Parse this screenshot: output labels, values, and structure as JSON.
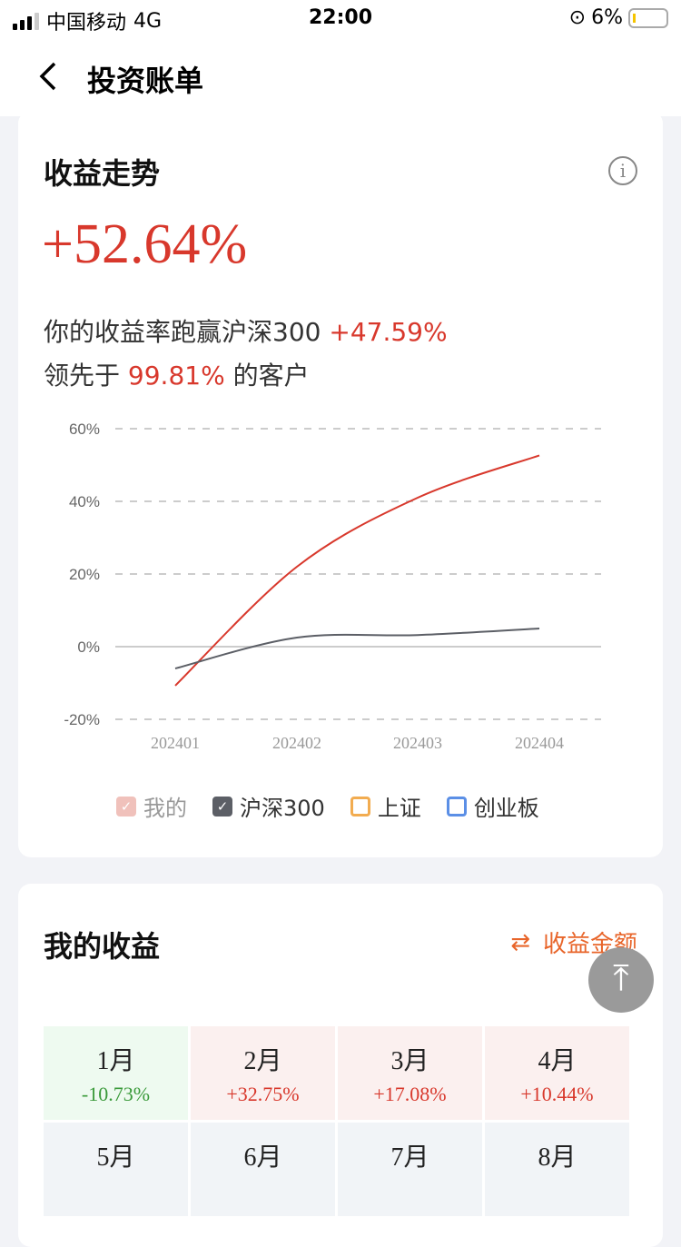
{
  "status": {
    "carrier": "中国移动",
    "network": "4G",
    "time": "22:00",
    "battery": "6%"
  },
  "nav": {
    "title": "投资账单",
    "back_icon": "chevron-left-icon"
  },
  "trend": {
    "title": "收益走势",
    "total": "+52.64%",
    "beat_prefix": "你的收益率跑赢沪深300",
    "beat_value": "+47.59%",
    "lead_prefix": "领先于",
    "lead_value": "99.81%",
    "lead_suffix": "的客户"
  },
  "chart_data": {
    "type": "line",
    "categories": [
      "202401",
      "202402",
      "202403",
      "202404"
    ],
    "yticks": [
      "60%",
      "40%",
      "20%",
      "0%",
      "-20%"
    ],
    "ylim": [
      -20,
      60
    ],
    "grid": true,
    "legend_placement": "bottom",
    "series": [
      {
        "name": "我的",
        "values": [
          -10.73,
          22,
          41,
          52.64
        ],
        "color": "#d8382c"
      },
      {
        "name": "沪深300",
        "values": [
          -6,
          2.5,
          3.2,
          5
        ],
        "color": "#5c5f66"
      }
    ],
    "legend": [
      {
        "name": "我的",
        "checked": true,
        "color": "#f0c1bb"
      },
      {
        "name": "沪深300",
        "checked": true,
        "color": "#5c5f66"
      },
      {
        "name": "上证",
        "checked": false,
        "color": "#f2ac50"
      },
      {
        "name": "创业板",
        "checked": false,
        "color": "#5b8fe6"
      }
    ]
  },
  "earnings": {
    "title": "我的收益",
    "toggle_label": "收益金额",
    "months": [
      {
        "m": "1月",
        "v": "-10.73%",
        "c": "#3a9a3a",
        "bg": "#eefaf0"
      },
      {
        "m": "2月",
        "v": "+32.75%",
        "c": "#d8382c",
        "bg": "#fbf0ef"
      },
      {
        "m": "3月",
        "v": "+17.08%",
        "c": "#d8382c",
        "bg": "#fbf0ef"
      },
      {
        "m": "4月",
        "v": "+10.44%",
        "c": "#d8382c",
        "bg": "#fbf0ef"
      },
      {
        "m": "5月",
        "v": "",
        "bg": "#f1f4f7"
      },
      {
        "m": "6月",
        "v": "",
        "bg": "#f1f4f7"
      },
      {
        "m": "7月",
        "v": "",
        "bg": "#f1f4f7"
      },
      {
        "m": "8月",
        "v": "",
        "bg": "#f1f4f7"
      }
    ]
  }
}
